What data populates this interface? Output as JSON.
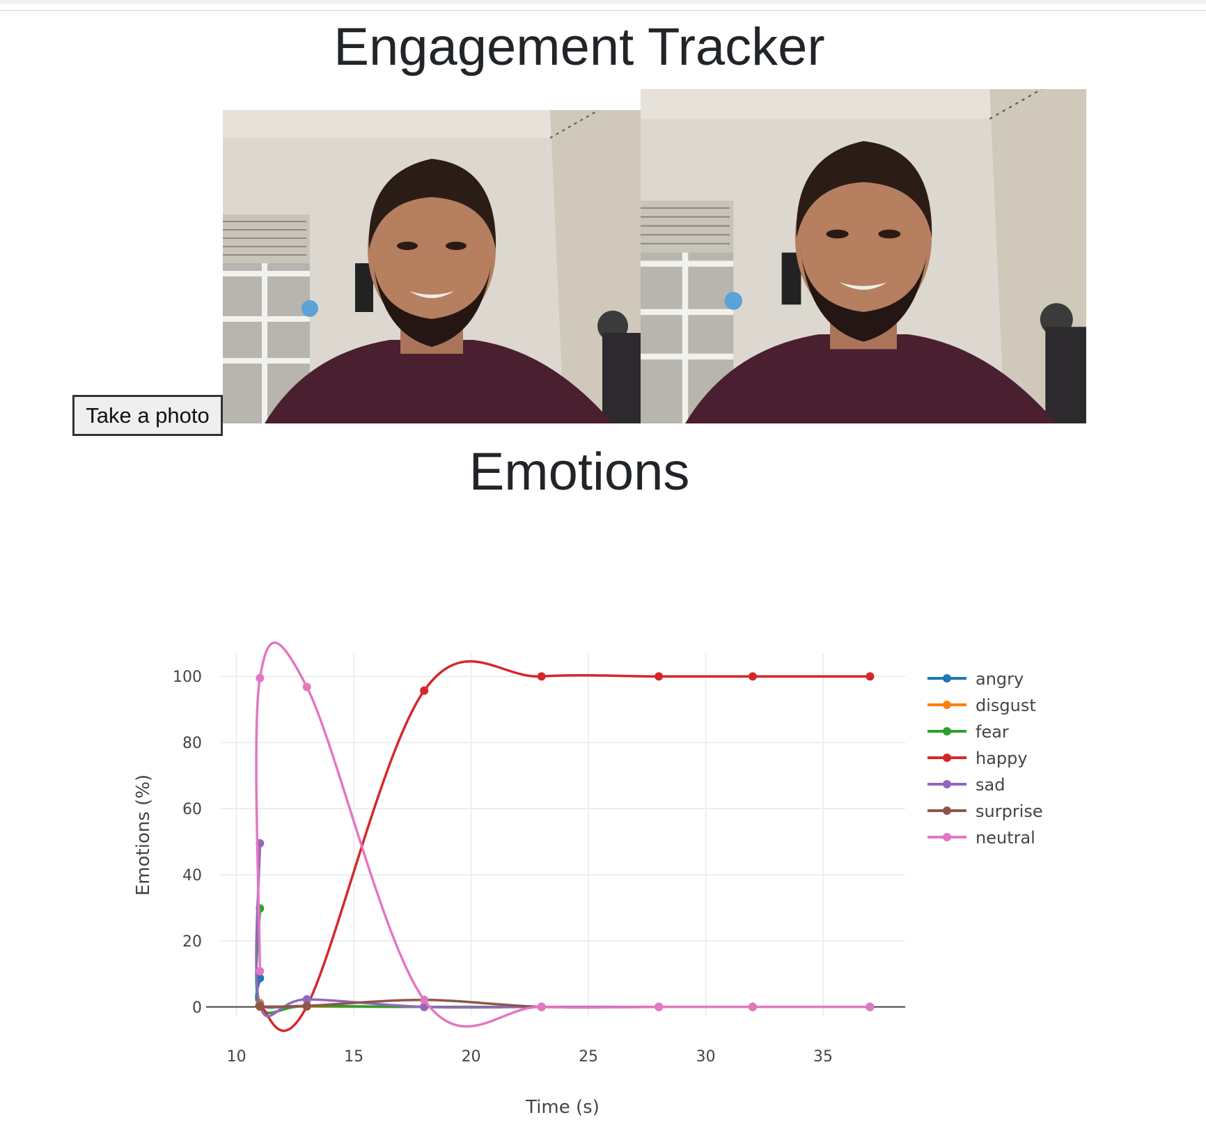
{
  "page": {
    "title": "Engagement Tracker",
    "section_title": "Emotions"
  },
  "controls": {
    "take_photo_label": "Take a photo"
  },
  "images": {
    "live_feed": "webcam-feed",
    "captured": "captured-photo"
  },
  "chart_data": {
    "type": "line",
    "title": "",
    "xlabel": "Time (s)",
    "ylabel": "Emotions (%)",
    "xlim": [
      9.3,
      38.5
    ],
    "ylim": [
      -3,
      107
    ],
    "xticks": [
      10,
      15,
      20,
      25,
      30,
      35
    ],
    "yticks": [
      0,
      20,
      40,
      60,
      80,
      100
    ],
    "grid": true,
    "legend_position": "right",
    "x": [
      11,
      11,
      13,
      18,
      23,
      28,
      32,
      37
    ],
    "series": [
      {
        "name": "angry",
        "color": "#1f77b4",
        "values": [
          8.7,
          0.5,
          0.3,
          0,
          0,
          0,
          0,
          0
        ]
      },
      {
        "name": "disgust",
        "color": "#ff7f0e",
        "values": [
          1.2,
          0.1,
          0.1,
          0,
          0,
          0,
          0,
          0
        ]
      },
      {
        "name": "fear",
        "color": "#2ca02c",
        "values": [
          29.8,
          0.5,
          0.3,
          0,
          0,
          0,
          0,
          0
        ]
      },
      {
        "name": "happy",
        "color": "#d62728",
        "values": [
          0.3,
          0.2,
          0.2,
          95.7,
          100,
          100,
          100,
          100
        ]
      },
      {
        "name": "sad",
        "color": "#9467bd",
        "values": [
          49.5,
          0.4,
          2.3,
          0,
          0,
          0,
          0,
          0
        ]
      },
      {
        "name": "surprise",
        "color": "#8c564b",
        "values": [
          0.2,
          0.1,
          0.3,
          2.1,
          0,
          0,
          0,
          0
        ]
      },
      {
        "name": "neutral",
        "color": "#e377c2",
        "values": [
          10.8,
          99.5,
          96.8,
          2.1,
          0,
          0,
          0,
          0
        ]
      }
    ]
  }
}
